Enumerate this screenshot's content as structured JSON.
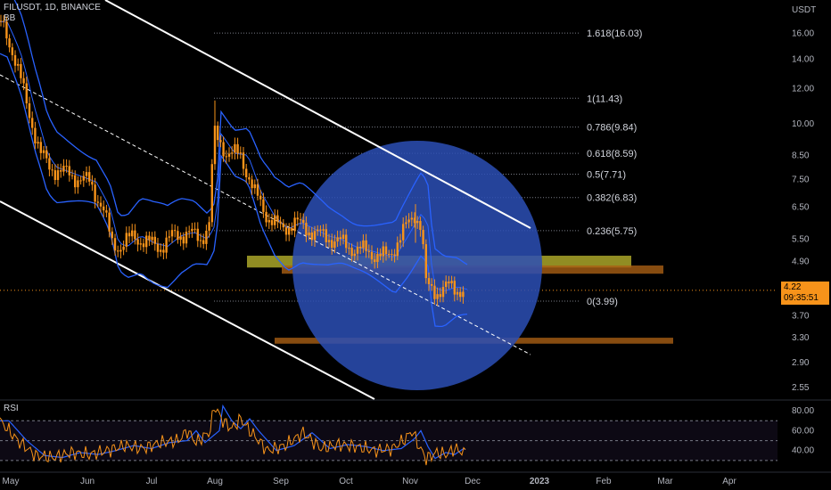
{
  "header": {
    "symbol": "FILUSDT, 1D, BINANCE",
    "indicator": "BB"
  },
  "price_axis": {
    "unit": "USDT",
    "ticks": [
      "16.00",
      "14.00",
      "12.00",
      "10.00",
      "8.50",
      "7.50",
      "6.50",
      "5.50",
      "4.90",
      "3.70",
      "3.30",
      "2.90",
      "2.55"
    ]
  },
  "current": {
    "price": "4.22",
    "countdown": "09:35:51"
  },
  "rsi": {
    "title": "RSI",
    "ticks": [
      "80.00",
      "60.00",
      "40.00"
    ]
  },
  "colors": {
    "background": "#000000",
    "candle": "#f7931a",
    "bollinger": "#2962ff",
    "fib": "#787b86",
    "circle": "#2c4fb5",
    "zone_yellow": "#b5b02c",
    "zone_orange": "#a95f14"
  },
  "chart_data": {
    "type": "candlestick",
    "title": "FILUSDT, 1D, BINANCE",
    "time_axis": [
      "May",
      "Jun",
      "Jul",
      "Aug",
      "Sep",
      "Oct",
      "Nov",
      "Dec",
      "2023",
      "Feb",
      "Mar",
      "Apr"
    ],
    "scale": "log",
    "ylim": [
      2.4,
      18
    ],
    "price_path": [
      [
        0,
        17
      ],
      [
        15,
        14.5
      ],
      [
        30,
        11
      ],
      [
        45,
        8.6
      ],
      [
        55,
        8.0
      ],
      [
        70,
        7.8
      ],
      [
        85,
        7.6
      ],
      [
        100,
        7.4
      ],
      [
        115,
        6.5
      ],
      [
        125,
        5.4
      ],
      [
        135,
        5.3
      ],
      [
        150,
        5.6
      ],
      [
        165,
        5.4
      ],
      [
        180,
        5.3
      ],
      [
        195,
        5.6
      ],
      [
        210,
        5.7
      ],
      [
        225,
        5.5
      ],
      [
        235,
        6.0
      ],
      [
        240,
        9.5
      ],
      [
        255,
        8.6
      ],
      [
        270,
        8.5
      ],
      [
        285,
        7.0
      ],
      [
        300,
        6.2
      ],
      [
        315,
        5.8
      ],
      [
        330,
        6.0
      ],
      [
        345,
        5.8
      ],
      [
        360,
        5.6
      ],
      [
        375,
        5.5
      ],
      [
        390,
        5.3
      ],
      [
        405,
        5.2
      ],
      [
        420,
        5.1
      ],
      [
        435,
        5.0
      ],
      [
        450,
        5.6
      ],
      [
        465,
        6.3
      ],
      [
        472,
        5.9
      ],
      [
        478,
        4.3
      ],
      [
        490,
        4.2
      ],
      [
        505,
        4.3
      ],
      [
        520,
        4.22
      ]
    ],
    "fibonacci": [
      {
        "label": "1.618(16.03)",
        "value": 16.03
      },
      {
        "label": "1(11.43)",
        "value": 11.43
      },
      {
        "label": "0.786(9.84)",
        "value": 9.84
      },
      {
        "label": "0.618(8.59)",
        "value": 8.59
      },
      {
        "label": "0.5(7.71)",
        "value": 7.71
      },
      {
        "label": "0.382(6.83)",
        "value": 6.83
      },
      {
        "label": "0.236(5.75)",
        "value": 5.75
      },
      {
        "label": "0(3.99)",
        "value": 3.99
      }
    ],
    "zones": [
      {
        "name": "yellow",
        "low": 4.75,
        "high": 5.05
      },
      {
        "name": "orange-upper",
        "low": 4.6,
        "high": 4.8
      },
      {
        "name": "orange-lower",
        "low": 3.2,
        "high": 3.3
      }
    ],
    "rsi": {
      "ylim": [
        20,
        90
      ],
      "levels": [
        70,
        50,
        30
      ],
      "path": [
        [
          0,
          70
        ],
        [
          20,
          50
        ],
        [
          40,
          35
        ],
        [
          60,
          33
        ],
        [
          80,
          38
        ],
        [
          100,
          36
        ],
        [
          120,
          40
        ],
        [
          140,
          45
        ],
        [
          160,
          42
        ],
        [
          180,
          48
        ],
        [
          200,
          50
        ],
        [
          210,
          60
        ],
        [
          220,
          48
        ],
        [
          236,
          60
        ],
        [
          240,
          85
        ],
        [
          250,
          70
        ],
        [
          260,
          62
        ],
        [
          270,
          72
        ],
        [
          280,
          60
        ],
        [
          290,
          50
        ],
        [
          300,
          40
        ],
        [
          320,
          45
        ],
        [
          340,
          58
        ],
        [
          350,
          50
        ],
        [
          360,
          42
        ],
        [
          380,
          46
        ],
        [
          400,
          44
        ],
        [
          420,
          40
        ],
        [
          440,
          42
        ],
        [
          455,
          52
        ],
        [
          462,
          60
        ],
        [
          470,
          44
        ],
        [
          478,
          32
        ],
        [
          490,
          38
        ],
        [
          500,
          36
        ],
        [
          510,
          42
        ],
        [
          520,
          38
        ]
      ]
    }
  }
}
